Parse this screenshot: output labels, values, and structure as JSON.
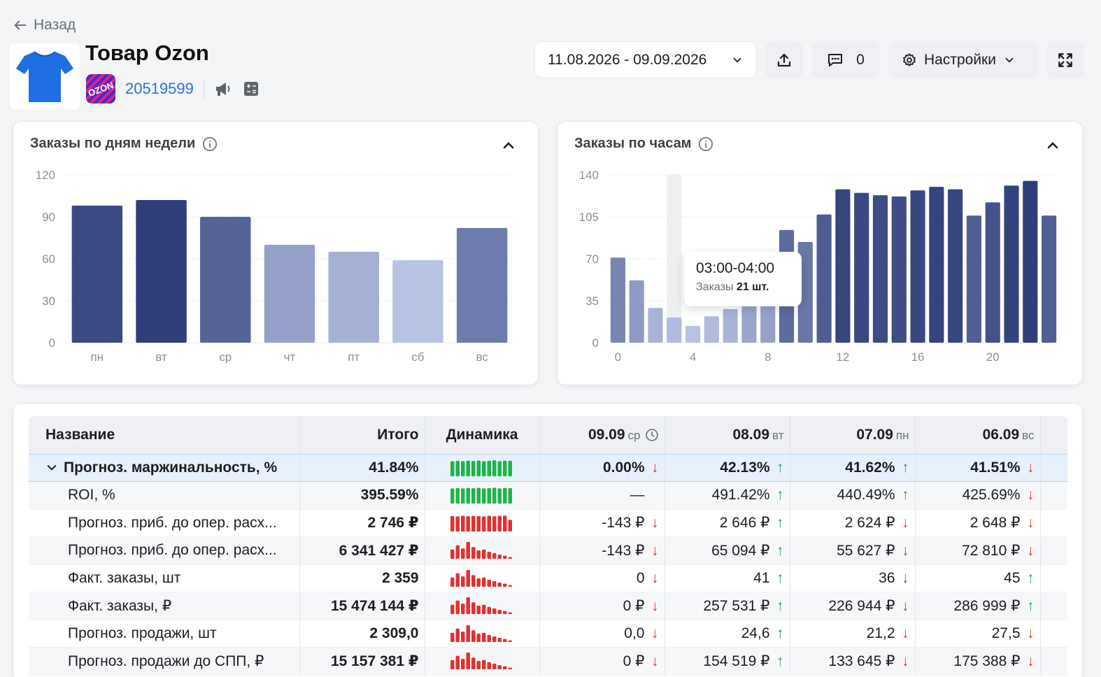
{
  "nav": {
    "back_label": "Назад"
  },
  "product": {
    "title": "Товар Ozon",
    "sku": "20519599",
    "marketplace_logo_text": "OZON"
  },
  "toolbar": {
    "date_range": "11.08.2026 - 09.09.2026",
    "comments_count": "0",
    "settings_label": "Настройки"
  },
  "colors": {
    "bar_dark": "#2e3f7a",
    "bar_light": "#b8c3e3",
    "spark_green": "#1fb44a",
    "spark_red": "#e03232",
    "link": "#2f6fd6"
  },
  "weekday_chart": {
    "title": "Заказы по дням недели",
    "chart_data": {
      "type": "bar",
      "categories": [
        "пн",
        "вт",
        "ср",
        "чт",
        "пт",
        "сб",
        "вс"
      ],
      "values": [
        98,
        102,
        90,
        70,
        65,
        59,
        82
      ],
      "ylim": [
        0,
        120
      ],
      "yticks": [
        "0",
        "30",
        "60",
        "90",
        "120"
      ],
      "grid": true
    }
  },
  "hourly_chart": {
    "title": "Заказы по часам",
    "chart_data": {
      "type": "bar",
      "x": [
        0,
        1,
        2,
        3,
        4,
        5,
        6,
        7,
        8,
        9,
        10,
        11,
        12,
        13,
        14,
        15,
        16,
        17,
        18,
        19,
        20,
        21,
        22,
        23
      ],
      "values": [
        71,
        52,
        29,
        21,
        14,
        22,
        28,
        40,
        44,
        94,
        84,
        107,
        128,
        125,
        123,
        122,
        127,
        130,
        128,
        106,
        117,
        131,
        135,
        106
      ],
      "ylim": [
        0,
        140
      ],
      "yticks": [
        "0",
        "35",
        "70",
        "105",
        "140"
      ],
      "xticks": [
        "0",
        "4",
        "8",
        "12",
        "16",
        "20"
      ],
      "grid": true,
      "highlight_index": 3
    },
    "tooltip": {
      "time": "03:00-04:00",
      "label": "Заказы",
      "value": "21 шт."
    }
  },
  "table": {
    "columns": [
      {
        "label": "Название"
      },
      {
        "label": "Итого"
      },
      {
        "label": "Динамика"
      },
      {
        "label": "09.09",
        "dow": "ср"
      },
      {
        "label": "08.09",
        "dow": "вт"
      },
      {
        "label": "07.09",
        "dow": "пн"
      },
      {
        "label": "06.09",
        "dow": "вс"
      }
    ],
    "rows": [
      {
        "name": "Прогноз. маржинальность, %",
        "total": "41.84%",
        "spark": "green-even",
        "cells": [
          [
            "0.00%",
            "down"
          ],
          [
            "42.13%",
            "up"
          ],
          [
            "41.62%",
            "up"
          ],
          [
            "41.51%",
            "down"
          ]
        ]
      },
      {
        "name": "ROI, %",
        "total": "395.59%",
        "spark": "green-even",
        "cells": [
          [
            "—",
            ""
          ],
          [
            "491.42%",
            "up"
          ],
          [
            "440.49%",
            "up"
          ],
          [
            "425.69%",
            "down"
          ]
        ]
      },
      {
        "name": "Прогноз. приб. до опер. расх...",
        "total": "2 746 ₽",
        "spark": "red-even",
        "cells": [
          [
            "-143 ₽",
            "down"
          ],
          [
            "2 646 ₽",
            "up"
          ],
          [
            "2 624 ₽",
            "down"
          ],
          [
            "2 648 ₽",
            "down"
          ]
        ]
      },
      {
        "name": "Прогноз. приб. до опер. расх...",
        "total": "6 341 427 ₽",
        "spark": "red-decay",
        "cells": [
          [
            "-143 ₽",
            "down"
          ],
          [
            "65 094 ₽",
            "up"
          ],
          [
            "55 627 ₽",
            "down"
          ],
          [
            "72 810 ₽",
            "down"
          ]
        ]
      },
      {
        "name": "Факт. заказы, шт",
        "total": "2 359",
        "spark": "red-decay",
        "cells": [
          [
            "0",
            "down"
          ],
          [
            "41",
            "up"
          ],
          [
            "36",
            "down"
          ],
          [
            "45",
            "up"
          ]
        ]
      },
      {
        "name": "Факт. заказы, ₽",
        "total": "15 474 144 ₽",
        "spark": "red-decay",
        "cells": [
          [
            "0 ₽",
            "down"
          ],
          [
            "257 531 ₽",
            "up"
          ],
          [
            "226 944 ₽",
            "down"
          ],
          [
            "286 999 ₽",
            "up"
          ]
        ]
      },
      {
        "name": "Прогноз. продажи, шт",
        "total": "2 309,0",
        "spark": "red-decay",
        "cells": [
          [
            "0,0",
            "down"
          ],
          [
            "24,6",
            "up"
          ],
          [
            "21,2",
            "down"
          ],
          [
            "27,5",
            "down"
          ]
        ]
      },
      {
        "name": "Прогноз. продажи до СПП, ₽",
        "total": "15 157 381 ₽",
        "spark": "red-decay",
        "cells": [
          [
            "0 ₽",
            "down"
          ],
          [
            "154 519 ₽",
            "up"
          ],
          [
            "133 645 ₽",
            "down"
          ],
          [
            "175 388 ₽",
            "down"
          ]
        ]
      }
    ]
  }
}
